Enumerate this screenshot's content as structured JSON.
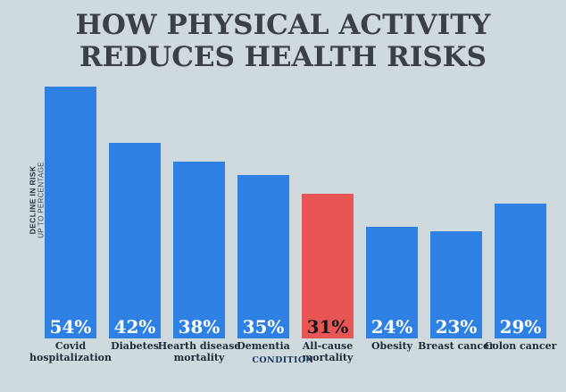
{
  "title": {
    "line1": "HOW PHYSICAL ACTIVITY",
    "line2": "REDUCES HEALTH RISKS"
  },
  "axes": {
    "y_label_primary": "DECLINE IN RISK",
    "y_label_secondary": "UP TO PERCENTAGE",
    "x_label": "CONDITION"
  },
  "colors": {
    "background": "#cfdade",
    "bar_blue": "#2e80e2",
    "bar_highlight_red": "#e85555",
    "title_text": "#3b4046",
    "category_text": "#222b39",
    "axis_text": "#1b3a63",
    "pct_text_on_blue": "#ffffff",
    "pct_text_on_red": "#14181c"
  },
  "chart_data": {
    "type": "bar",
    "title": "HOW PHYSICAL ACTIVITY REDUCES HEALTH RISKS",
    "categories": [
      "Covid hospitalization",
      "Diabetes",
      "Hearth disease mortality",
      "Dementia",
      "All-cause mortality",
      "Obesity",
      "Breast cancer",
      "Colon cancer"
    ],
    "values": [
      54,
      42,
      38,
      35,
      31,
      24,
      23,
      29
    ],
    "value_labels": [
      "54%",
      "42%",
      "38%",
      "35%",
      "31%",
      "24%",
      "23%",
      "29%"
    ],
    "highlight_index": 4,
    "xlabel": "CONDITION",
    "ylabel": "DECLINE IN RISK UP TO PERCENTAGE",
    "ylim": [
      0,
      56
    ],
    "grid": false,
    "legend": null,
    "value_labels_position": "inside-bottom"
  }
}
